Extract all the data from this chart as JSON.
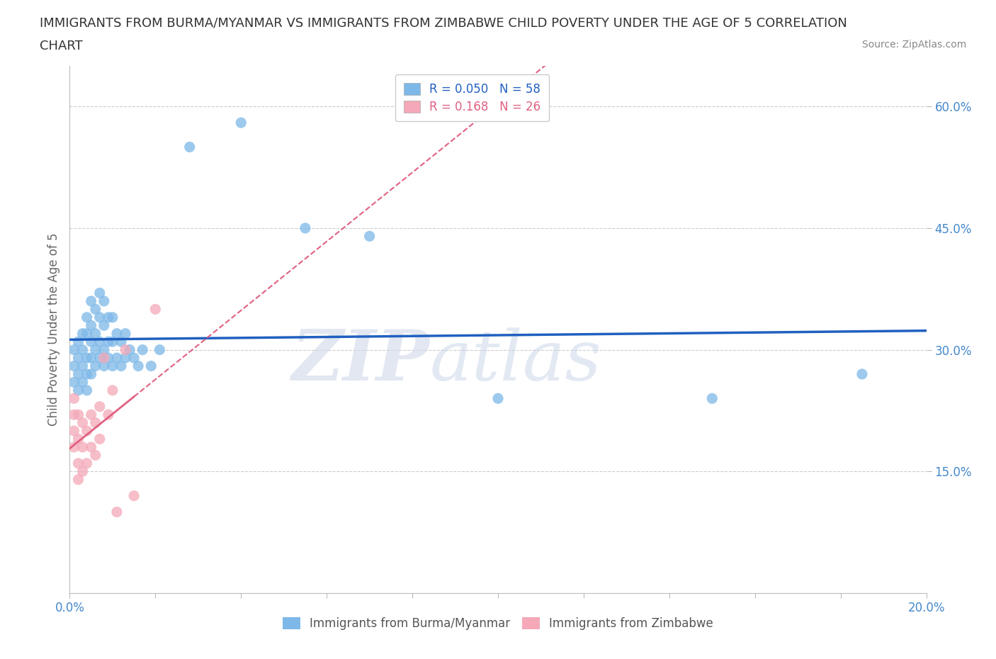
{
  "title_line1": "IMMIGRANTS FROM BURMA/MYANMAR VS IMMIGRANTS FROM ZIMBABWE CHILD POVERTY UNDER THE AGE OF 5 CORRELATION",
  "title_line2": "CHART",
  "source": "Source: ZipAtlas.com",
  "ylabel": "Child Poverty Under the Age of 5",
  "xlim": [
    0.0,
    0.2
  ],
  "ylim": [
    0.0,
    0.65
  ],
  "burma_color": "#7db8e8",
  "zimbabwe_color": "#f4a8b8",
  "burma_line_color": "#2060c0",
  "zimbabwe_line_color": "#e06080",
  "R_burma": 0.05,
  "N_burma": 58,
  "R_zimbabwe": 0.168,
  "N_zimbabwe": 26,
  "burma_scatter_x": [
    0.001,
    0.001,
    0.001,
    0.002,
    0.002,
    0.002,
    0.002,
    0.003,
    0.003,
    0.003,
    0.003,
    0.004,
    0.004,
    0.004,
    0.004,
    0.004,
    0.005,
    0.005,
    0.005,
    0.005,
    0.005,
    0.006,
    0.006,
    0.006,
    0.006,
    0.007,
    0.007,
    0.007,
    0.007,
    0.008,
    0.008,
    0.008,
    0.008,
    0.009,
    0.009,
    0.009,
    0.01,
    0.01,
    0.01,
    0.011,
    0.011,
    0.012,
    0.012,
    0.013,
    0.013,
    0.014,
    0.015,
    0.016,
    0.017,
    0.019,
    0.021,
    0.028,
    0.04,
    0.055,
    0.07,
    0.1,
    0.15,
    0.185
  ],
  "burma_scatter_y": [
    0.26,
    0.28,
    0.3,
    0.25,
    0.27,
    0.29,
    0.31,
    0.26,
    0.28,
    0.3,
    0.32,
    0.25,
    0.27,
    0.29,
    0.32,
    0.34,
    0.27,
    0.29,
    0.31,
    0.33,
    0.36,
    0.28,
    0.3,
    0.32,
    0.35,
    0.29,
    0.31,
    0.34,
    0.37,
    0.28,
    0.3,
    0.33,
    0.36,
    0.29,
    0.31,
    0.34,
    0.28,
    0.31,
    0.34,
    0.29,
    0.32,
    0.28,
    0.31,
    0.29,
    0.32,
    0.3,
    0.29,
    0.28,
    0.3,
    0.28,
    0.3,
    0.55,
    0.58,
    0.45,
    0.44,
    0.24,
    0.24,
    0.27
  ],
  "zimbabwe_scatter_x": [
    0.001,
    0.001,
    0.001,
    0.001,
    0.002,
    0.002,
    0.002,
    0.002,
    0.003,
    0.003,
    0.003,
    0.004,
    0.004,
    0.005,
    0.005,
    0.006,
    0.006,
    0.007,
    0.007,
    0.008,
    0.009,
    0.01,
    0.011,
    0.013,
    0.015,
    0.02
  ],
  "zimbabwe_scatter_y": [
    0.18,
    0.2,
    0.22,
    0.24,
    0.14,
    0.16,
    0.19,
    0.22,
    0.15,
    0.18,
    0.21,
    0.16,
    0.2,
    0.18,
    0.22,
    0.17,
    0.21,
    0.19,
    0.23,
    0.29,
    0.22,
    0.25,
    0.1,
    0.3,
    0.12,
    0.35
  ],
  "watermark_zip": "ZIP",
  "watermark_atlas": "atlas",
  "background_color": "#ffffff",
  "grid_color": "#cccccc",
  "title_color": "#333333",
  "axis_label_color": "#666666",
  "tick_color": "#4488cc",
  "source_color": "#888888",
  "title_fontsize": 13,
  "label_fontsize": 12,
  "tick_fontsize": 12,
  "legend_fontsize": 12
}
